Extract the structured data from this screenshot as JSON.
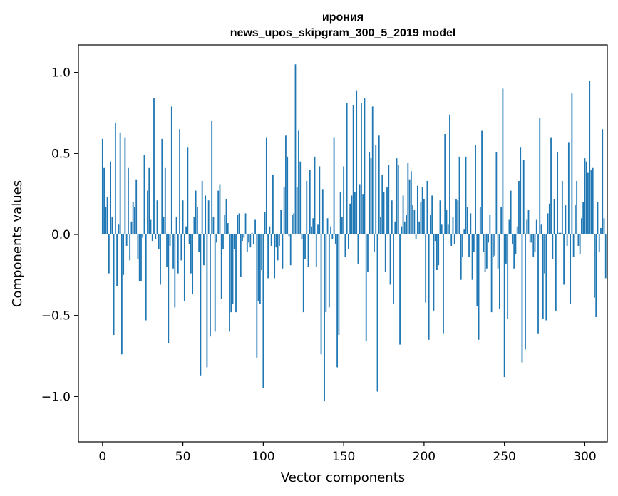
{
  "chart_data": {
    "type": "bar",
    "title": "ирония",
    "subtitle": "news_upos_skipgram_300_5_2019 model",
    "xlabel": "Vector components",
    "ylabel": "Components values",
    "xlim": [
      -15,
      314
    ],
    "ylim": [
      -1.28,
      1.17
    ],
    "xticks": [
      0,
      50,
      100,
      150,
      200,
      250,
      300
    ],
    "xtick_labels": [
      "0",
      "50",
      "100",
      "150",
      "200",
      "250",
      "300"
    ],
    "yticks": [
      -1.0,
      -0.5,
      0.0,
      0.5,
      1.0
    ],
    "ytick_labels": [
      "−1.0",
      "−0.5",
      "0.0",
      "0.5",
      "1.0"
    ],
    "bar_color": "#1f77b4",
    "grid": false,
    "values": [
      0.59,
      0.41,
      0.17,
      0.23,
      -0.24,
      0.45,
      0.11,
      -0.62,
      0.69,
      -0.32,
      0.06,
      0.63,
      -0.74,
      -0.25,
      0.6,
      -0.07,
      0.41,
      -0.16,
      0.08,
      0.2,
      0.17,
      0.34,
      -0.15,
      -0.29,
      -0.29,
      -0.02,
      0.49,
      -0.53,
      0.27,
      0.41,
      0.09,
      -0.04,
      0.84,
      -0.03,
      0.21,
      -0.09,
      -0.31,
      0.59,
      0.11,
      0.41,
      -0.2,
      -0.67,
      -0.07,
      0.79,
      -0.21,
      -0.45,
      0.11,
      -0.24,
      0.65,
      -0.16,
      0.21,
      -0.41,
      0.05,
      0.54,
      -0.06,
      -0.24,
      -0.37,
      0.11,
      0.27,
      0.17,
      -0.11,
      -0.87,
      0.33,
      -0.19,
      0.24,
      -0.82,
      0.21,
      -0.63,
      0.7,
      0.11,
      -0.6,
      -0.05,
      0.27,
      0.31,
      -0.4,
      -0.09,
      0.12,
      0.22,
      0.07,
      -0.6,
      -0.48,
      -0.43,
      -0.09,
      -0.48,
      0.12,
      0.13,
      -0.26,
      -0.04,
      -0.02,
      0.13,
      -0.11,
      -0.05,
      -0.08,
      0.01,
      -0.06,
      0.09,
      -0.76,
      -0.41,
      -0.43,
      -0.22,
      -0.95,
      0.14,
      0.6,
      -0.27,
      0.05,
      -0.07,
      0.37,
      -0.27,
      -0.08,
      -0.16,
      -0.07,
      0.15,
      -0.21,
      0.29,
      0.61,
      0.48,
      -0.01,
      -0.19,
      0.12,
      0.13,
      1.05,
      0.29,
      0.64,
      0.45,
      -0.03,
      -0.48,
      -0.15,
      0.33,
      -0.2,
      0.4,
      0.05,
      0.1,
      0.48,
      -0.2,
      0.06,
      0.42,
      -0.74,
      0.28,
      -1.03,
      -0.48,
      0.1,
      -0.45,
      0.05,
      -0.03,
      0.6,
      -0.06,
      -0.82,
      -0.62,
      0.26,
      0.11,
      0.42,
      -0.14,
      0.81,
      -0.09,
      0.19,
      0.24,
      0.8,
      0.26,
      0.89,
      -0.18,
      0.31,
      0.81,
      0.25,
      0.84,
      -0.66,
      -0.23,
      0.51,
      0.47,
      0.79,
      -0.11,
      0.55,
      -0.97,
      0.61,
      0.11,
      0.37,
      0.26,
      -0.23,
      0.29,
      0.43,
      -0.31,
      0.21,
      -0.43,
      0.08,
      0.47,
      0.43,
      -0.68,
      0.05,
      0.24,
      0.08,
      0.12,
      0.44,
      0.34,
      0.39,
      0.18,
      0.15,
      -0.03,
      0.3,
      0.08,
      0.2,
      0.29,
      0.22,
      -0.42,
      0.33,
      -0.65,
      0.12,
      0.24,
      -0.47,
      -0.04,
      -0.22,
      -0.19,
      0.21,
      0.06,
      -0.61,
      0.62,
      0.15,
      0.06,
      0.74,
      -0.07,
      0.11,
      -0.06,
      0.22,
      0.21,
      0.48,
      -0.28,
      -0.14,
      0.03,
      0.48,
      0.17,
      -0.14,
      0.13,
      -0.28,
      -0.11,
      0.55,
      -0.44,
      -0.65,
      0.17,
      0.64,
      -0.11,
      -0.23,
      -0.21,
      -0.05,
      0.12,
      -0.48,
      -0.14,
      -0.13,
      0.51,
      -0.21,
      -0.46,
      0.17,
      0.9,
      -0.88,
      -0.18,
      -0.52,
      0.09,
      0.27,
      -0.06,
      -0.21,
      -0.12,
      0.05,
      0.33,
      0.54,
      -0.79,
      0.46,
      -0.71,
      0.09,
      0.15,
      -0.05,
      -0.05,
      -0.14,
      -0.11,
      0.09,
      -0.61,
      0.72,
      0.06,
      -0.52,
      -0.24,
      -0.53,
      0.13,
      0.19,
      0.6,
      -0.15,
      0.22,
      -0.47,
      0.51,
      0.01,
      0.01,
      0.33,
      -0.31,
      0.18,
      -0.07,
      0.57,
      -0.43,
      0.87,
      -0.14,
      0.18,
      0.33,
      -0.07,
      -0.12,
      0.1,
      0.2,
      0.47,
      0.45,
      0.38,
      0.95,
      0.4,
      0.41,
      -0.39,
      -0.51,
      0.2,
      -0.11,
      0.04,
      0.65,
      0.1,
      -0.27
    ]
  }
}
